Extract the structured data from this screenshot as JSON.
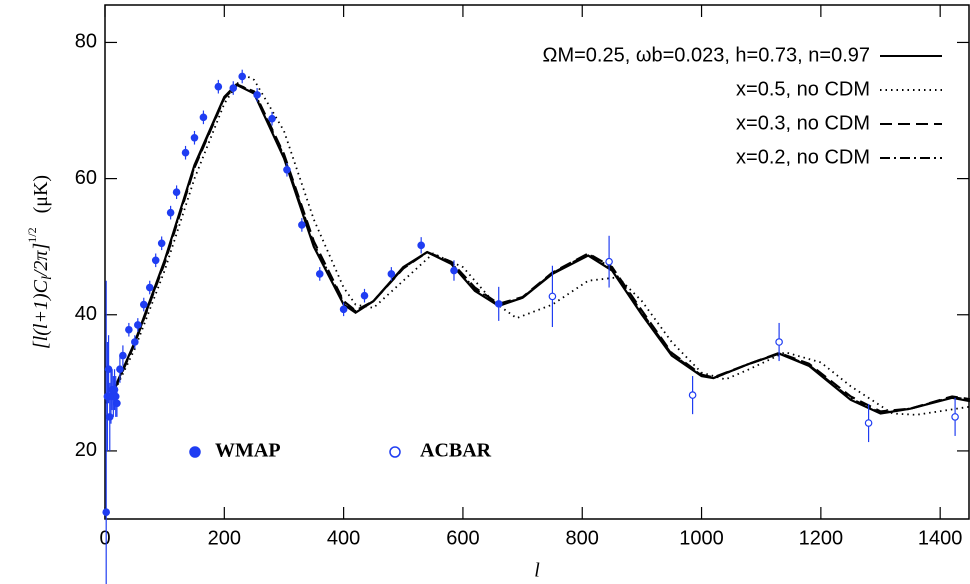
{
  "chart_data": {
    "type": "line",
    "xlabel": "l",
    "ylabel": [
      "[l(l+1)C",
      "l",
      "/2π]",
      "1/2",
      "(μK)"
    ],
    "xlim": [
      0,
      1450
    ],
    "ylim": [
      10,
      85.5
    ],
    "xticks": [
      0,
      200,
      400,
      600,
      800,
      1000,
      1200,
      1400
    ],
    "yticks": [
      20,
      40,
      60,
      80
    ],
    "legend": "upper right",
    "series": [
      {
        "name": "ΩM=0.25, ωb=0.023, h=0.73, n=0.97",
        "color": "#000000",
        "linestyle": "solid",
        "x": [
          2,
          20,
          50,
          100,
          150,
          200,
          220,
          250,
          300,
          350,
          400,
          420,
          450,
          500,
          540,
          580,
          620,
          660,
          700,
          750,
          810,
          850,
          900,
          950,
          1000,
          1020,
          1080,
          1130,
          1180,
          1250,
          1300,
          1350,
          1420,
          1450
        ],
        "values": [
          27,
          30,
          36,
          48,
          62,
          72,
          73.8,
          72.5,
          63,
          50,
          41.5,
          40.3,
          42,
          47,
          49.2,
          47.5,
          43.5,
          41.3,
          42.5,
          46,
          48.7,
          46.5,
          40,
          34,
          31,
          30.7,
          32.8,
          34.3,
          32.5,
          27.5,
          25.5,
          26.2,
          27.8,
          27.3
        ]
      },
      {
        "name": "x=0.5, no CDM",
        "color": "#000000",
        "linestyle": "dotted",
        "x": [
          2,
          20,
          50,
          100,
          150,
          200,
          232,
          250,
          300,
          350,
          400,
          420,
          450,
          500,
          550,
          600,
          650,
          690,
          750,
          810,
          860,
          900,
          950,
          1000,
          1040,
          1080,
          1140,
          1200,
          1250,
          1320,
          1360,
          1450
        ],
        "values": [
          27,
          29.5,
          35,
          46.5,
          60,
          71,
          75.3,
          74.5,
          67,
          54,
          44,
          41.5,
          41,
          45,
          49,
          47,
          42,
          39.5,
          41.5,
          45,
          45.5,
          42,
          36,
          31.5,
          30.5,
          32,
          34.5,
          33,
          29.5,
          25.5,
          25.3,
          26.5
        ]
      },
      {
        "name": "x=0.3, no CDM",
        "color": "#000000",
        "linestyle": "dashed",
        "x": [
          2,
          20,
          50,
          100,
          150,
          200,
          222,
          250,
          300,
          350,
          400,
          420,
          450,
          500,
          540,
          580,
          620,
          660,
          700,
          750,
          810,
          850,
          900,
          950,
          1000,
          1020,
          1080,
          1130,
          1180,
          1250,
          1300,
          1350,
          1420,
          1450
        ],
        "values": [
          27,
          29.8,
          35.8,
          47.6,
          61.6,
          71.8,
          73.8,
          72.8,
          63.6,
          50.8,
          42,
          40.6,
          42,
          46.8,
          49.2,
          47.8,
          44,
          41.6,
          42.6,
          46.2,
          49,
          47,
          40.6,
          34.4,
          31.2,
          30.8,
          32.8,
          34.4,
          32.8,
          28,
          25.8,
          26.2,
          28,
          27.6
        ]
      },
      {
        "name": "x=0.2, no CDM",
        "color": "#000000",
        "linestyle": "dashdot",
        "x": [
          2,
          20,
          50,
          100,
          150,
          200,
          221,
          250,
          300,
          350,
          400,
          420,
          450,
          500,
          540,
          580,
          620,
          660,
          700,
          750,
          810,
          850,
          900,
          950,
          1000,
          1020,
          1080,
          1130,
          1180,
          1250,
          1300,
          1350,
          1420,
          1450
        ],
        "values": [
          27,
          29.9,
          35.9,
          47.8,
          61.8,
          71.9,
          73.8,
          72.7,
          63.3,
          50.4,
          41.8,
          40.5,
          42,
          46.9,
          49.2,
          47.6,
          43.8,
          41.4,
          42.5,
          46.1,
          48.9,
          46.8,
          40.3,
          34.2,
          31.1,
          30.7,
          32.8,
          34.3,
          32.6,
          27.7,
          25.6,
          26.2,
          27.9,
          27.5
        ]
      }
    ],
    "points": [
      {
        "name": "WMAP",
        "color": "#1f3df2",
        "marker": "filled",
        "x": [
          2,
          4,
          6,
          8,
          10,
          12,
          14,
          16,
          18,
          20,
          25,
          30,
          40,
          50,
          55,
          65,
          75,
          85,
          95,
          110,
          120,
          135,
          150,
          165,
          190,
          215,
          230,
          255,
          280,
          305,
          330,
          360,
          400,
          435,
          480,
          530,
          585,
          660
        ],
        "values": [
          11,
          28,
          32,
          25,
          28,
          29,
          28,
          29,
          28,
          27,
          32,
          34,
          37.8,
          36,
          38.5,
          41.5,
          44,
          48,
          50.5,
          55,
          58,
          63.8,
          66,
          69,
          73.5,
          73.3,
          75,
          72.3,
          68.8,
          61.3,
          53.2,
          46,
          40.8,
          42.8,
          46,
          50.2,
          46.5,
          41.6
        ],
        "errors": [
          34,
          8,
          5,
          5,
          4,
          3,
          3,
          3,
          3,
          2,
          2,
          1.5,
          1,
          1,
          1,
          1,
          1,
          1,
          1,
          1,
          1,
          1,
          1,
          1,
          1,
          1,
          1,
          1,
          1,
          1,
          1,
          1,
          1,
          1,
          1,
          1.2,
          1.5,
          2.5
        ]
      },
      {
        "name": "ACBAR",
        "color": "#1f3df2",
        "marker": "open",
        "x": [
          750,
          845,
          985,
          1130,
          1280,
          1425
        ],
        "values": [
          42.7,
          47.8,
          28.2,
          36,
          24.1,
          25
        ],
        "errors": [
          4.5,
          3.8,
          2.8,
          2.8,
          2.8,
          2.8
        ]
      }
    ]
  }
}
